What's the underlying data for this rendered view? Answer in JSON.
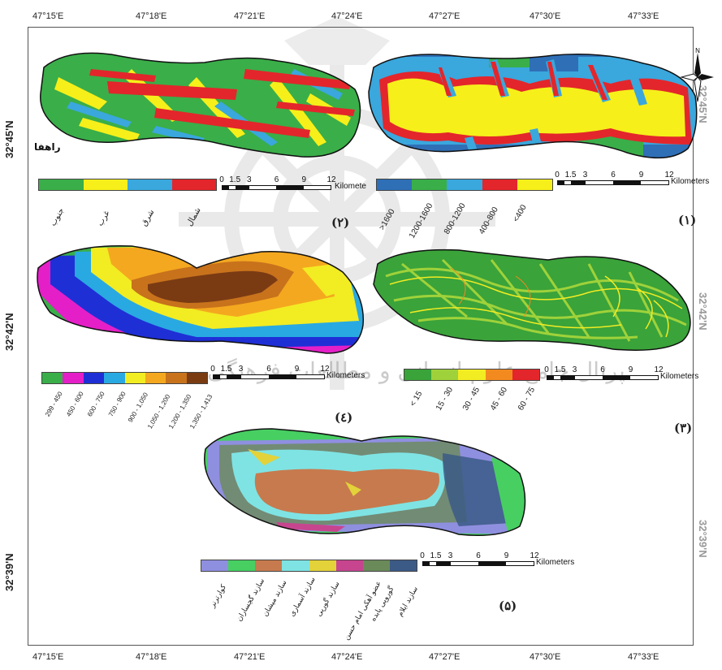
{
  "coordinates": {
    "top": [
      "47°15'E",
      "47°18'E",
      "47°21'E",
      "47°24'E",
      "47°27'E",
      "47°30'E",
      "47°33'E"
    ],
    "bottom": [
      "47°15'E",
      "47°18'E",
      "47°21'E",
      "47°24'E",
      "47°27'E",
      "47°30'E",
      "47°33'E"
    ],
    "left": [
      "32°45'N",
      "32°42'N",
      "32°39'N"
    ],
    "right": [
      "32°45'N",
      "32°42'N",
      "32°39'N"
    ]
  },
  "watermark_text": "پرتال جامع علوم انسانی و مطالعات فرهنگی",
  "scale": {
    "numbers": [
      "0",
      "1.5",
      "3",
      "6",
      "9",
      "12"
    ],
    "unit_full": "Kilometers",
    "unit_truncated": "Kilomete"
  },
  "panels": {
    "p1": {
      "label": "(۱)",
      "legend": [
        {
          "text": ">1600",
          "color": "#2f6fb6"
        },
        {
          "text": "1200-1600",
          "color": "#3aae49"
        },
        {
          "text": "800-1200",
          "color": "#3aa7dd"
        },
        {
          "text": "400-800",
          "color": "#e3262b"
        },
        {
          "text": "<400",
          "color": "#f6ef1a"
        }
      ]
    },
    "p2": {
      "label": "(۲)",
      "place_label": "راهفا",
      "legend": [
        {
          "text": "جنوب",
          "color": "#3aae49"
        },
        {
          "text": "غرب",
          "color": "#f6ef1a"
        },
        {
          "text": "شرق",
          "color": "#3aa7dd"
        },
        {
          "text": "شمال",
          "color": "#e3262b"
        }
      ]
    },
    "p3": {
      "label": "(۳)",
      "legend": [
        {
          "text": "< 15",
          "color": "#3aa33a"
        },
        {
          "text": "15 - 30",
          "color": "#9fd23a"
        },
        {
          "text": "30 - 45",
          "color": "#f2ec23"
        },
        {
          "text": "45 - 60",
          "color": "#f28a1f"
        },
        {
          "text": "60 - 75",
          "color": "#e3262b"
        }
      ]
    },
    "p4": {
      "label": "(٤)",
      "legend": [
        {
          "text": "299 - 450",
          "color": "#3aae49"
        },
        {
          "text": "450 - 600",
          "color": "#e51fc8"
        },
        {
          "text": "600 - 750",
          "color": "#1f2fd6"
        },
        {
          "text": "750 - 900",
          "color": "#29a9e1"
        },
        {
          "text": "900 - 1,050",
          "color": "#f2ec23"
        },
        {
          "text": "1,050 - 1,200",
          "color": "#f4a81f"
        },
        {
          "text": "1,200 - 1,350",
          "color": "#c8721c"
        },
        {
          "text": "1,350 - 1,413",
          "color": "#7a3b13"
        }
      ]
    },
    "p5": {
      "label": "(۵)",
      "legend": [
        {
          "text": "کوارترنر",
          "color": "#8f8fe0"
        },
        {
          "text": "سازند گچساران",
          "color": "#47cf62"
        },
        {
          "text": "سازند میشان",
          "color": "#c77a4e"
        },
        {
          "text": "سازند آسماری",
          "color": "#7fe3e3"
        },
        {
          "text": "سازند گورپی",
          "color": "#e3d23a"
        },
        {
          "text": "عضو آهکی امام حسن",
          "color": "#c7458f"
        },
        {
          "text": "گوروپی پابده",
          "color": "#6a8a5a"
        },
        {
          "text": "سازند ایلام",
          "color": "#3b5a86"
        }
      ]
    }
  },
  "compass": {
    "label": "N"
  }
}
